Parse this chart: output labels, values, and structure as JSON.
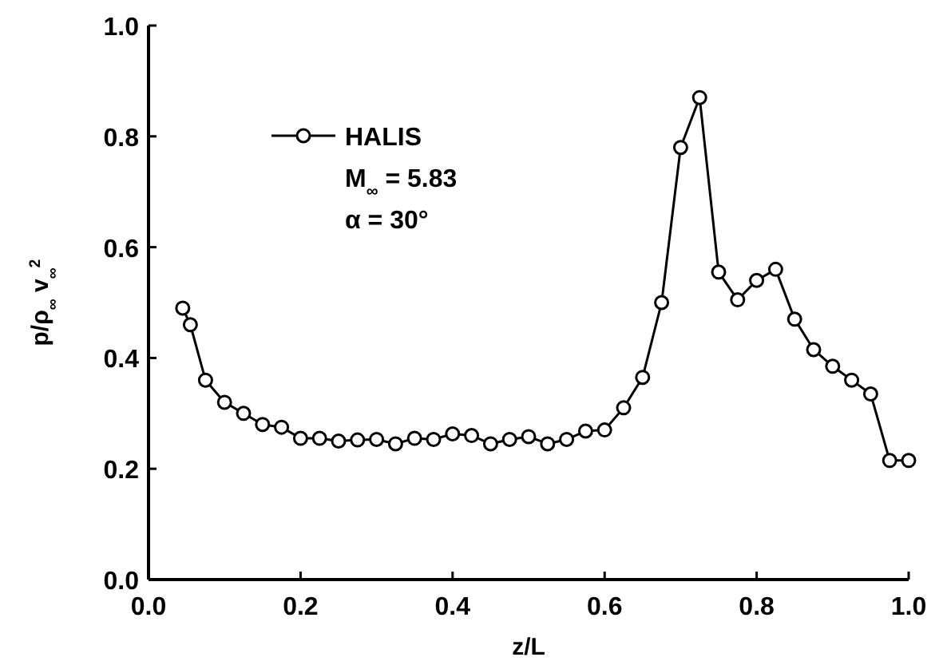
{
  "chart_data": {
    "type": "line",
    "xlabel": "z/L",
    "ylabel": "p/ρ$_{∞}$ v$_{∞}$$^{2}$",
    "xlim": [
      0,
      1
    ],
    "ylim": [
      0,
      1
    ],
    "xticks": [
      {
        "value": 0,
        "label": "0.0"
      },
      {
        "value": 0.2,
        "label": "0.2"
      },
      {
        "value": 0.4,
        "label": "0.4"
      },
      {
        "value": 0.6,
        "label": "0.6"
      },
      {
        "value": 0.8,
        "label": "0.8"
      },
      {
        "value": 1,
        "label": "1.0"
      }
    ],
    "yticks": [
      {
        "value": 0,
        "label": "0.0"
      },
      {
        "value": 0.2,
        "label": "0.2"
      },
      {
        "value": 0.4,
        "label": "0.4"
      },
      {
        "value": 0.6,
        "label": "0.6"
      },
      {
        "value": 0.8,
        "label": "0.8"
      },
      {
        "value": 1,
        "label": "1.0"
      }
    ],
    "marker": "circle",
    "line_style": "solid",
    "legend": "top left",
    "grid": false,
    "annotations": [
      "M$_{∞}$ = 5.83",
      "α = 30°"
    ],
    "series": [
      {
        "name": "HALIS",
        "color": "#000000",
        "x": [
          0.045,
          0.055,
          0.075,
          0.1,
          0.125,
          0.15,
          0.175,
          0.2,
          0.225,
          0.25,
          0.275,
          0.3,
          0.325,
          0.35,
          0.375,
          0.4,
          0.425,
          0.45,
          0.475,
          0.5,
          0.525,
          0.55,
          0.575,
          0.6,
          0.625,
          0.65,
          0.675,
          0.7,
          0.725,
          0.75,
          0.775,
          0.8,
          0.825,
          0.85,
          0.875,
          0.9,
          0.925,
          0.95,
          0.975,
          1.0
        ],
        "values": [
          0.49,
          0.46,
          0.36,
          0.32,
          0.3,
          0.28,
          0.275,
          0.255,
          0.255,
          0.25,
          0.252,
          0.253,
          0.245,
          0.255,
          0.253,
          0.263,
          0.26,
          0.245,
          0.253,
          0.258,
          0.245,
          0.253,
          0.268,
          0.27,
          0.31,
          0.365,
          0.5,
          0.78,
          0.87,
          0.555,
          0.505,
          0.54,
          0.56,
          0.47,
          0.415,
          0.385,
          0.36,
          0.335,
          0.215,
          0.215
        ]
      }
    ]
  }
}
